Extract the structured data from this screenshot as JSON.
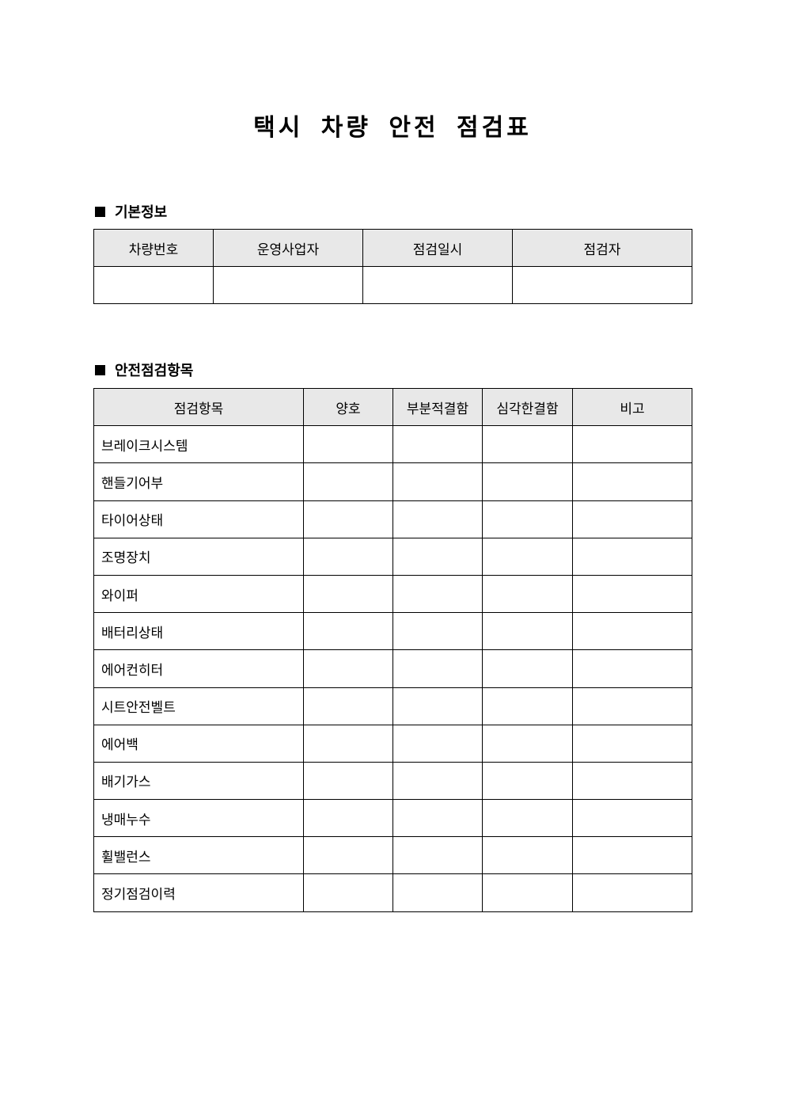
{
  "title": "택시 차량 안전 점검표",
  "basic_info": {
    "heading": "기본정보",
    "headers": [
      "차량번호",
      "운영사업자",
      "점검일시",
      "점검자"
    ],
    "values": [
      "",
      "",
      "",
      ""
    ]
  },
  "safety_check": {
    "heading": "안전점검항목",
    "headers": [
      "점검항목",
      "양호",
      "부분적결함",
      "심각한결함",
      "비고"
    ],
    "items": [
      "브레이크시스템",
      "핸들기어부",
      "타이어상태",
      "조명장치",
      "와이퍼",
      "배터리상태",
      "에어컨히터",
      "시트안전벨트",
      "에어백",
      "배기가스",
      "냉매누수",
      "휠밸런스",
      "정기점검이력"
    ]
  },
  "colors": {
    "header_bg": "#e8e8e8",
    "border": "#000000"
  }
}
